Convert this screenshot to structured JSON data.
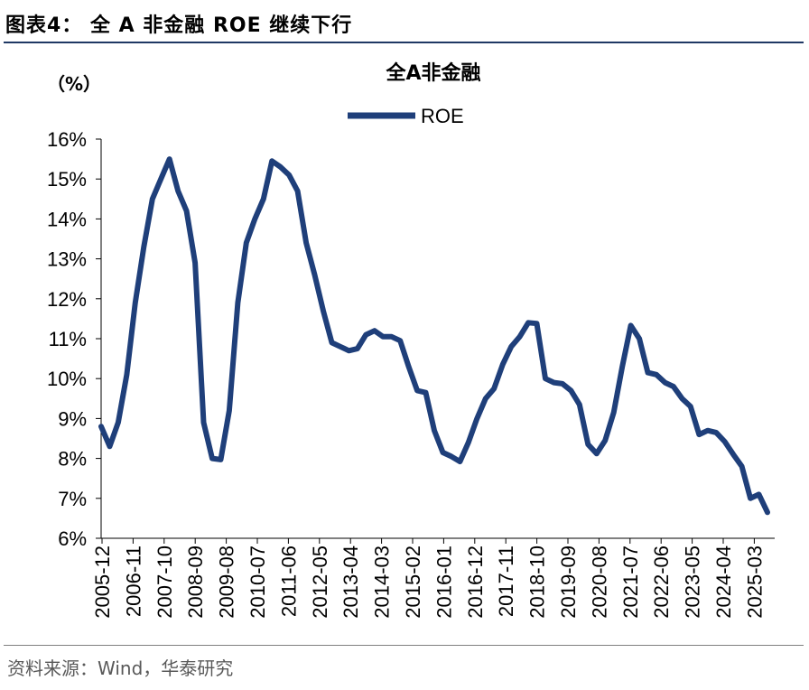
{
  "figure": {
    "title": "图表4：  全 A 非金融 ROE 继续下行",
    "source": "资料来源：Wind，华泰研究"
  },
  "chart_data": {
    "type": "line",
    "title": "全A非金融",
    "ylabel": "（%）",
    "ylim": [
      6,
      16
    ],
    "yticks": [
      6,
      7,
      8,
      9,
      10,
      11,
      12,
      13,
      14,
      15,
      16
    ],
    "ytick_labels": [
      "6%",
      "7%",
      "8%",
      "9%",
      "10%",
      "11%",
      "12%",
      "13%",
      "14%",
      "15%",
      "16%"
    ],
    "xtick_labels": [
      "2005-12",
      "2006-11",
      "2007-10",
      "2008-09",
      "2009-08",
      "2010-07",
      "2011-06",
      "2012-05",
      "2013-04",
      "2014-03",
      "2015-02",
      "2016-01",
      "2016-12",
      "2017-11",
      "2018-10",
      "2019-09",
      "2020-08",
      "2021-07",
      "2022-06",
      "2023-05",
      "2024-04",
      "2025-03"
    ],
    "legend": "top-center",
    "grid": false,
    "line_color": "#1f3f7a",
    "series": [
      {
        "name": "ROE",
        "color": "#1f3f7a",
        "x": [
          2005.92,
          2006.17,
          2006.42,
          2006.67,
          2006.92,
          2007.17,
          2007.42,
          2007.67,
          2007.92,
          2008.17,
          2008.42,
          2008.67,
          2008.92,
          2009.17,
          2009.42,
          2009.67,
          2009.92,
          2010.17,
          2010.42,
          2010.67,
          2010.92,
          2011.17,
          2011.42,
          2011.67,
          2011.92,
          2012.17,
          2012.42,
          2012.67,
          2012.92,
          2013.17,
          2013.42,
          2013.67,
          2013.92,
          2014.17,
          2014.42,
          2014.67,
          2014.92,
          2015.17,
          2015.42,
          2015.67,
          2015.92,
          2016.17,
          2016.42,
          2016.67,
          2016.92,
          2017.17,
          2017.42,
          2017.67,
          2017.92,
          2018.17,
          2018.42,
          2018.67,
          2018.92,
          2019.17,
          2019.42,
          2019.67,
          2019.92,
          2020.17,
          2020.42,
          2020.67,
          2020.92,
          2021.17,
          2021.42,
          2021.67,
          2021.92,
          2022.17,
          2022.42,
          2022.67,
          2022.92,
          2023.17,
          2023.42,
          2023.67,
          2023.92,
          2024.17,
          2024.42,
          2024.67,
          2024.92,
          2025.17,
          2025.42
        ],
        "values": [
          8.8,
          8.3,
          8.9,
          10.1,
          11.9,
          13.3,
          14.5,
          15.0,
          15.5,
          14.7,
          14.2,
          12.9,
          8.9,
          8.0,
          7.97,
          9.2,
          11.9,
          13.4,
          14.0,
          14.5,
          15.45,
          15.3,
          15.1,
          14.7,
          13.4,
          12.6,
          11.7,
          10.9,
          10.8,
          10.7,
          10.75,
          11.1,
          11.2,
          11.05,
          11.05,
          10.95,
          10.3,
          9.7,
          9.65,
          8.7,
          8.15,
          8.05,
          7.92,
          8.4,
          9.0,
          9.5,
          9.75,
          10.35,
          10.8,
          11.05,
          11.4,
          11.38,
          10.0,
          9.9,
          9.87,
          9.7,
          9.35,
          8.35,
          8.12,
          8.45,
          9.15,
          10.3,
          11.33,
          11.0,
          10.15,
          10.1,
          9.9,
          9.8,
          9.5,
          9.3,
          8.6,
          8.7,
          8.65,
          8.42,
          8.1,
          7.8,
          7.0,
          7.1,
          6.65
        ]
      }
    ]
  }
}
